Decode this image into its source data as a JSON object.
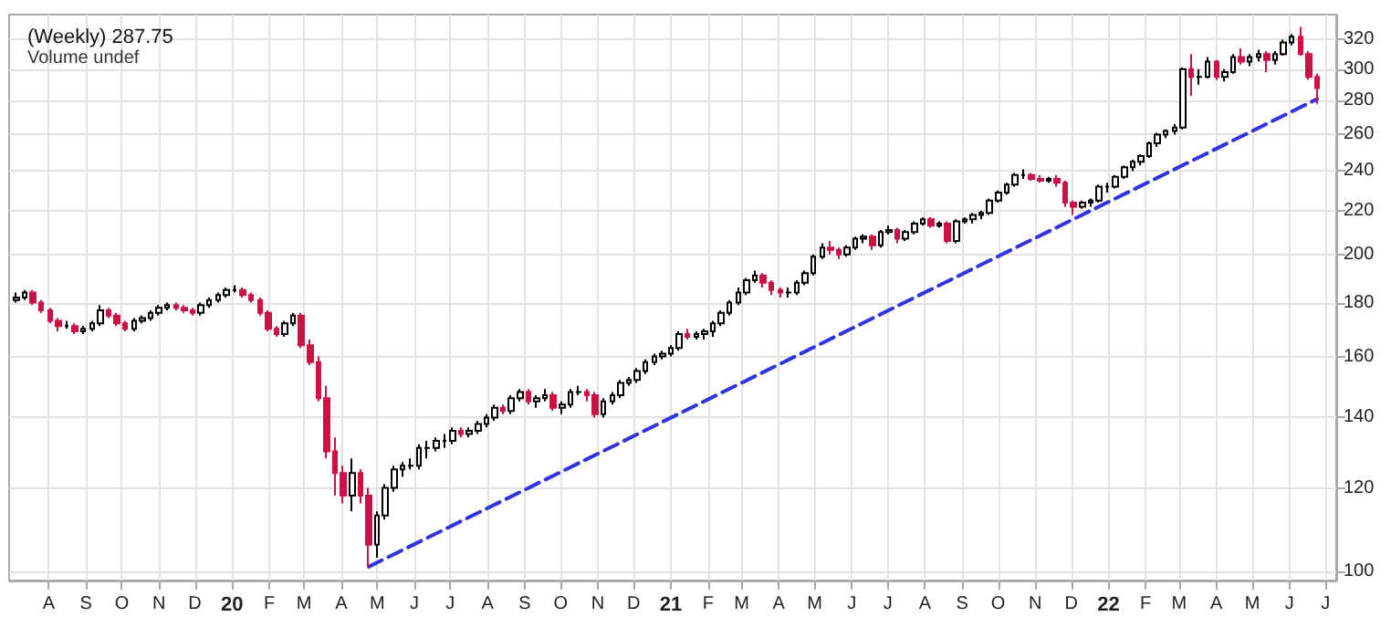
{
  "chart_data": {
    "type": "candlestick",
    "title": "(Weekly) 287.75",
    "annotations": [
      "Volume undef"
    ],
    "x": [
      "2019-07-05",
      "2019-07-12",
      "2019-07-19",
      "2019-07-26",
      "2019-08-02",
      "2019-08-09",
      "2019-08-16",
      "2019-08-23",
      "2019-08-30",
      "2019-09-06",
      "2019-09-13",
      "2019-09-20",
      "2019-09-27",
      "2019-10-04",
      "2019-10-11",
      "2019-10-18",
      "2019-10-25",
      "2019-11-01",
      "2019-11-08",
      "2019-11-15",
      "2019-11-22",
      "2019-11-29",
      "2019-12-06",
      "2019-12-13",
      "2019-12-20",
      "2019-12-27",
      "2020-01-03",
      "2020-01-10",
      "2020-01-17",
      "2020-01-24",
      "2020-01-31",
      "2020-02-07",
      "2020-02-14",
      "2020-02-21",
      "2020-02-28",
      "2020-03-06",
      "2020-03-13",
      "2020-03-20",
      "2020-03-27",
      "2020-04-03",
      "2020-04-10",
      "2020-04-17",
      "2020-04-24",
      "2020-05-01",
      "2020-05-08",
      "2020-05-15",
      "2020-05-22",
      "2020-05-29",
      "2020-06-05",
      "2020-06-12",
      "2020-06-19",
      "2020-06-26",
      "2020-07-03",
      "2020-07-10",
      "2020-07-17",
      "2020-07-24",
      "2020-07-31",
      "2020-08-07",
      "2020-08-14",
      "2020-08-21",
      "2020-08-28",
      "2020-09-04",
      "2020-09-11",
      "2020-09-18",
      "2020-09-25",
      "2020-10-02",
      "2020-10-09",
      "2020-10-16",
      "2020-10-23",
      "2020-10-30",
      "2020-11-06",
      "2020-11-13",
      "2020-11-20",
      "2020-11-27",
      "2020-12-04",
      "2020-12-11",
      "2020-12-18",
      "2020-12-25",
      "2021-01-01",
      "2021-01-08",
      "2021-01-15",
      "2021-01-22",
      "2021-01-29",
      "2021-02-05",
      "2021-02-12",
      "2021-02-19",
      "2021-02-26",
      "2021-03-05",
      "2021-03-12",
      "2021-03-19",
      "2021-03-26",
      "2021-04-02",
      "2021-04-09",
      "2021-04-16",
      "2021-04-23",
      "2021-04-30",
      "2021-05-07",
      "2021-05-14",
      "2021-05-21",
      "2021-05-28",
      "2021-06-04",
      "2021-06-11",
      "2021-06-18",
      "2021-06-25",
      "2021-07-02",
      "2021-07-09",
      "2021-07-16",
      "2021-07-23",
      "2021-07-30",
      "2021-08-06",
      "2021-08-13",
      "2021-08-20",
      "2021-08-27",
      "2021-09-03",
      "2021-09-10",
      "2021-09-17",
      "2021-09-24",
      "2021-10-01",
      "2021-10-08",
      "2021-10-15",
      "2021-10-22",
      "2021-10-29",
      "2021-11-05",
      "2021-11-12",
      "2021-11-19",
      "2021-11-26",
      "2021-12-03",
      "2021-12-10",
      "2021-12-17",
      "2021-12-24",
      "2021-12-31",
      "2022-01-07",
      "2022-01-14",
      "2022-01-21",
      "2022-01-28",
      "2022-02-04",
      "2022-02-11",
      "2022-02-18",
      "2022-02-25",
      "2022-03-04",
      "2022-03-11",
      "2022-03-18",
      "2022-03-25",
      "2022-04-01",
      "2022-04-08",
      "2022-04-15",
      "2022-04-22",
      "2022-04-29",
      "2022-05-06",
      "2022-05-13",
      "2022-05-20",
      "2022-05-27",
      "2022-06-03",
      "2022-06-10",
      "2022-06-17",
      "2022-06-24"
    ],
    "series": [
      {
        "colors": [
          "#ffffff",
          "#ffffff",
          "#cc1144",
          "#cc1144",
          "#cc1144",
          "#cc1144",
          "#000000",
          "#cc1144",
          "#ffffff",
          "#ffffff",
          "#ffffff",
          "#cc1144",
          "#cc1144",
          "#cc1144",
          "#ffffff",
          "#ffffff",
          "#ffffff",
          "#ffffff",
          "#ffffff",
          "#cc1144",
          "#cc1144",
          "#cc1144",
          "#ffffff",
          "#ffffff",
          "#ffffff",
          "#ffffff",
          "#000000",
          "#cc1144",
          "#cc1144",
          "#cc1144",
          "#cc1144",
          "#cc1144",
          "#ffffff",
          "#ffffff",
          "#cc1144",
          "#cc1144",
          "#cc1144",
          "#cc1144",
          "#cc1144",
          "#cc1144",
          "#ffffff",
          "#cc1144",
          "#cc1144",
          "#ffffff",
          "#ffffff",
          "#ffffff",
          "#ffffff",
          "#000000",
          "#ffffff",
          "#000000",
          "#ffffff",
          "#000000",
          "#ffffff",
          "#cc1144",
          "#ffffff",
          "#ffffff",
          "#ffffff",
          "#ffffff",
          "#cc1144",
          "#ffffff",
          "#ffffff",
          "#cc1144",
          "#ffffff",
          "#ffffff",
          "#cc1144",
          "#ffffff",
          "#ffffff",
          "#000000",
          "#cc1144",
          "#cc1144",
          "#ffffff",
          "#ffffff",
          "#ffffff",
          "#ffffff",
          "#ffffff",
          "#ffffff",
          "#ffffff",
          "#ffffff",
          "#ffffff",
          "#ffffff",
          "#cc1144",
          "#ffffff",
          "#ffffff",
          "#ffffff",
          "#ffffff",
          "#ffffff",
          "#ffffff",
          "#ffffff",
          "#ffffff",
          "#cc1144",
          "#cc1144",
          "#cc1144",
          "#000000",
          "#ffffff",
          "#ffffff",
          "#ffffff",
          "#ffffff",
          "#cc1144",
          "#cc1144",
          "#ffffff",
          "#ffffff",
          "#ffffff",
          "#cc1144",
          "#ffffff",
          "#ffffff",
          "#cc1144",
          "#ffffff",
          "#ffffff",
          "#ffffff",
          "#cc1144",
          "#ffffff",
          "#cc1144",
          "#ffffff",
          "#ffffff",
          "#ffffff",
          "#ffffff",
          "#ffffff",
          "#ffffff",
          "#ffffff",
          "#ffffff",
          "#000000",
          "#cc1144",
          "#cc1144",
          "#ffffff",
          "#cc1144",
          "#cc1144",
          "#cc1144",
          "#ffffff",
          "#ffffff",
          "#ffffff",
          "#000000",
          "#ffffff",
          "#ffffff",
          "#ffffff",
          "#ffffff",
          "#ffffff",
          "#ffffff",
          "#ffffff",
          "#ffffff",
          "#ffffff",
          "#cc1144",
          "#000000",
          "#ffffff",
          "#cc1144",
          "#ffffff",
          "#ffffff",
          "#cc1144",
          "#ffffff",
          "#ffffff",
          "#cc1144",
          "#ffffff",
          "#ffffff",
          "#ffffff",
          "#cc1144",
          "#cc1144",
          "#cc1144"
        ],
        "ohlc": [
          [
            181,
            184,
            180,
            182
          ],
          [
            182,
            185,
            181,
            184
          ],
          [
            184,
            185,
            179,
            180
          ],
          [
            180,
            181,
            176,
            177
          ],
          [
            177,
            178,
            172,
            173
          ],
          [
            173,
            174,
            169,
            171
          ],
          [
            171,
            173,
            170,
            171
          ],
          [
            171,
            172,
            168,
            169
          ],
          [
            169,
            171,
            168,
            170
          ],
          [
            170,
            173,
            169,
            172
          ],
          [
            172,
            179,
            171,
            177
          ],
          [
            177,
            178,
            174,
            175
          ],
          [
            175,
            176,
            171,
            172
          ],
          [
            172,
            173,
            169,
            170
          ],
          [
            170,
            174,
            169,
            173
          ],
          [
            173,
            175,
            172,
            174
          ],
          [
            174,
            177,
            173,
            176
          ],
          [
            176,
            179,
            175,
            178
          ],
          [
            178,
            180,
            177,
            179
          ],
          [
            179,
            180,
            177,
            178
          ],
          [
            178,
            179,
            176,
            177
          ],
          [
            177,
            178,
            175,
            176
          ],
          [
            176,
            180,
            175,
            179
          ],
          [
            179,
            182,
            178,
            181
          ],
          [
            181,
            184,
            180,
            183
          ],
          [
            183,
            186,
            182,
            185
          ],
          [
            185,
            187,
            184,
            185
          ],
          [
            185,
            186,
            182,
            183
          ],
          [
            183,
            184,
            180,
            181
          ],
          [
            181,
            182,
            175,
            176
          ],
          [
            176,
            177,
            169,
            170
          ],
          [
            170,
            171,
            167,
            168
          ],
          [
            168,
            173,
            167,
            172
          ],
          [
            172,
            176,
            171,
            175
          ],
          [
            175,
            176,
            163,
            164
          ],
          [
            164,
            166,
            157,
            158
          ],
          [
            158,
            160,
            145,
            146
          ],
          [
            146,
            150,
            128,
            130
          ],
          [
            130,
            134,
            118,
            124
          ],
          [
            124,
            126,
            116,
            118
          ],
          [
            118,
            128,
            114,
            124
          ],
          [
            124,
            125,
            116,
            118
          ],
          [
            118,
            120,
            101,
            106
          ],
          [
            106,
            114,
            103,
            113
          ],
          [
            113,
            121,
            112,
            120
          ],
          [
            120,
            126,
            119,
            125
          ],
          [
            125,
            127,
            123,
            126
          ],
          [
            126,
            128,
            125,
            126
          ],
          [
            126,
            132,
            125,
            131
          ],
          [
            131,
            133,
            128,
            131
          ],
          [
            131,
            134,
            130,
            133
          ],
          [
            133,
            135,
            131,
            133
          ],
          [
            133,
            137,
            132,
            136
          ],
          [
            136,
            137,
            134,
            135
          ],
          [
            135,
            137,
            134,
            136
          ],
          [
            136,
            139,
            135,
            138
          ],
          [
            138,
            141,
            137,
            140
          ],
          [
            140,
            144,
            139,
            143
          ],
          [
            143,
            144,
            141,
            142
          ],
          [
            142,
            147,
            141,
            146
          ],
          [
            146,
            149,
            145,
            148
          ],
          [
            148,
            149,
            144,
            145
          ],
          [
            145,
            147,
            143,
            146
          ],
          [
            146,
            149,
            145,
            147
          ],
          [
            147,
            148,
            142,
            143
          ],
          [
            143,
            145,
            141,
            144
          ],
          [
            144,
            149,
            143,
            148
          ],
          [
            148,
            150,
            147,
            148
          ],
          [
            148,
            149,
            145,
            147
          ],
          [
            147,
            148,
            140,
            141
          ],
          [
            141,
            146,
            140,
            145
          ],
          [
            145,
            148,
            144,
            147
          ],
          [
            147,
            152,
            146,
            151
          ],
          [
            151,
            153,
            150,
            152
          ],
          [
            152,
            156,
            151,
            155
          ],
          [
            155,
            159,
            154,
            158
          ],
          [
            158,
            161,
            157,
            160
          ],
          [
            160,
            162,
            159,
            161
          ],
          [
            161,
            164,
            160,
            163
          ],
          [
            163,
            169,
            162,
            168
          ],
          [
            168,
            170,
            166,
            167
          ],
          [
            167,
            169,
            166,
            168
          ],
          [
            168,
            170,
            166,
            169
          ],
          [
            169,
            173,
            167,
            172
          ],
          [
            172,
            177,
            171,
            176
          ],
          [
            176,
            181,
            175,
            180
          ],
          [
            180,
            186,
            179,
            184
          ],
          [
            184,
            190,
            183,
            189
          ],
          [
            189,
            193,
            188,
            191
          ],
          [
            191,
            192,
            186,
            188
          ],
          [
            188,
            189,
            183,
            185
          ],
          [
            185,
            186,
            182,
            184
          ],
          [
            184,
            186,
            182,
            184
          ],
          [
            184,
            189,
            183,
            188
          ],
          [
            188,
            193,
            187,
            192
          ],
          [
            192,
            200,
            191,
            199
          ],
          [
            199,
            205,
            198,
            203
          ],
          [
            203,
            206,
            200,
            202
          ],
          [
            202,
            203,
            198,
            200
          ],
          [
            200,
            204,
            199,
            203
          ],
          [
            203,
            208,
            202,
            207
          ],
          [
            207,
            209,
            205,
            208
          ],
          [
            208,
            209,
            202,
            204
          ],
          [
            204,
            211,
            203,
            210
          ],
          [
            210,
            213,
            209,
            211
          ],
          [
            211,
            212,
            205,
            207
          ],
          [
            207,
            211,
            206,
            210
          ],
          [
            210,
            215,
            209,
            214
          ],
          [
            214,
            217,
            213,
            216
          ],
          [
            216,
            217,
            212,
            213
          ],
          [
            213,
            215,
            212,
            214
          ],
          [
            214,
            215,
            205,
            206
          ],
          [
            206,
            216,
            205,
            215
          ],
          [
            215,
            217,
            214,
            216
          ],
          [
            216,
            219,
            214,
            218
          ],
          [
            218,
            220,
            216,
            219
          ],
          [
            219,
            226,
            218,
            225
          ],
          [
            225,
            230,
            224,
            229
          ],
          [
            229,
            234,
            228,
            233
          ],
          [
            233,
            239,
            232,
            238
          ],
          [
            238,
            241,
            236,
            238
          ],
          [
            238,
            239,
            235,
            236
          ],
          [
            236,
            238,
            234,
            235
          ],
          [
            235,
            237,
            234,
            236
          ],
          [
            236,
            238,
            232,
            234
          ],
          [
            234,
            235,
            222,
            224
          ],
          [
            224,
            225,
            218,
            222
          ],
          [
            222,
            225,
            221,
            224
          ],
          [
            224,
            226,
            222,
            225
          ],
          [
            225,
            233,
            224,
            232
          ],
          [
            232,
            234,
            229,
            232
          ],
          [
            232,
            238,
            231,
            237
          ],
          [
            237,
            243,
            236,
            242
          ],
          [
            242,
            246,
            240,
            245
          ],
          [
            245,
            249,
            243,
            248
          ],
          [
            248,
            256,
            247,
            255
          ],
          [
            255,
            261,
            253,
            260
          ],
          [
            260,
            263,
            258,
            262
          ],
          [
            262,
            266,
            260,
            264
          ],
          [
            264,
            301,
            263,
            300
          ],
          [
            300,
            310,
            283,
            295
          ],
          [
            295,
            300,
            290,
            295
          ],
          [
            295,
            308,
            294,
            305
          ],
          [
            305,
            306,
            293,
            295
          ],
          [
            295,
            300,
            292,
            298
          ],
          [
            298,
            310,
            297,
            308
          ],
          [
            308,
            314,
            303,
            305
          ],
          [
            305,
            310,
            302,
            308
          ],
          [
            308,
            313,
            305,
            310
          ],
          [
            310,
            312,
            298,
            306
          ],
          [
            306,
            312,
            303,
            310
          ],
          [
            310,
            320,
            309,
            318
          ],
          [
            318,
            324,
            316,
            322
          ],
          [
            322,
            329,
            309,
            310
          ],
          [
            310,
            312,
            293,
            295
          ],
          [
            295,
            297,
            278,
            287.75
          ]
        ]
      },
      {
        "type": "line",
        "color": "#3333dd",
        "line_style": "dashed",
        "marker": "none",
        "x": [
          "2020-04-24",
          "2022-06-24"
        ],
        "values": [
          101,
          281
        ]
      }
    ],
    "log": "y",
    "grid": true,
    "xlim": [
      "2019-06-29",
      "2022-07-10"
    ],
    "xticks": [
      {
        "value": "2019-08-01",
        "label": "A"
      },
      {
        "value": "2019-09-01",
        "label": "S"
      },
      {
        "value": "2019-10-01",
        "label": "O"
      },
      {
        "value": "2019-11-01",
        "label": "N"
      },
      {
        "value": "2019-12-01",
        "label": "D"
      },
      {
        "value": "2020-01-01",
        "label": "20"
      },
      {
        "value": "2020-02-01",
        "label": "F"
      },
      {
        "value": "2020-03-01",
        "label": "M"
      },
      {
        "value": "2020-04-01",
        "label": "A"
      },
      {
        "value": "2020-05-01",
        "label": "M"
      },
      {
        "value": "2020-06-01",
        "label": "J"
      },
      {
        "value": "2020-07-01",
        "label": "J"
      },
      {
        "value": "2020-08-01",
        "label": "A"
      },
      {
        "value": "2020-09-01",
        "label": "S"
      },
      {
        "value": "2020-10-01",
        "label": "O"
      },
      {
        "value": "2020-11-01",
        "label": "N"
      },
      {
        "value": "2020-12-01",
        "label": "D"
      },
      {
        "value": "2021-01-01",
        "label": "21"
      },
      {
        "value": "2021-02-01",
        "label": "F"
      },
      {
        "value": "2021-03-01",
        "label": "M"
      },
      {
        "value": "2021-04-01",
        "label": "A"
      },
      {
        "value": "2021-05-01",
        "label": "M"
      },
      {
        "value": "2021-06-01",
        "label": "J"
      },
      {
        "value": "2021-07-01",
        "label": "J"
      },
      {
        "value": "2021-08-01",
        "label": "A"
      },
      {
        "value": "2021-09-01",
        "label": "S"
      },
      {
        "value": "2021-10-01",
        "label": "O"
      },
      {
        "value": "2021-11-01",
        "label": "N"
      },
      {
        "value": "2021-12-01",
        "label": "D"
      },
      {
        "value": "2022-01-01",
        "label": "22"
      },
      {
        "value": "2022-02-01",
        "label": "F"
      },
      {
        "value": "2022-03-01",
        "label": "M"
      },
      {
        "value": "2022-04-01",
        "label": "A"
      },
      {
        "value": "2022-05-01",
        "label": "M"
      },
      {
        "value": "2022-06-01",
        "label": "J"
      },
      {
        "value": "2022-07-01",
        "label": "J"
      }
    ],
    "ylim": [
      98,
      338
    ],
    "yticks": [
      100,
      120,
      140,
      160,
      180,
      200,
      220,
      240,
      260,
      280,
      300,
      320
    ]
  }
}
